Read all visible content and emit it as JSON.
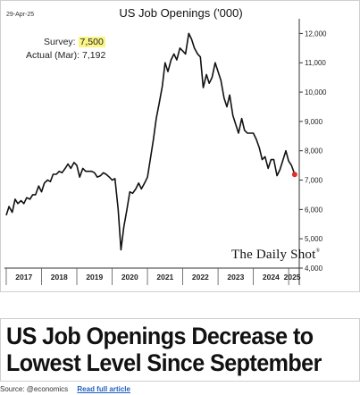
{
  "page": {
    "headline_line1": "US Job Openings Decrease to",
    "headline_line2": "Lowest Level Since September",
    "source_label": "Source: @economics",
    "read_more_label": "Read full article"
  },
  "chart_data": {
    "type": "line",
    "title": "US Job Openings ('000)",
    "date_stamp": "29-Apr-25",
    "annotations": {
      "survey_label": "Survey:",
      "survey_value": "7,500",
      "actual_label": "Actual (Mar):",
      "actual_value": "7,192"
    },
    "watermark": "The Daily Shot",
    "watermark_mark": "®",
    "xlabel": "",
    "ylabel": "",
    "y_axis_side": "right",
    "ylim": [
      4000,
      12500
    ],
    "yticks": [
      4000,
      5000,
      6000,
      7000,
      8000,
      9000,
      10000,
      11000,
      12000
    ],
    "ytick_labels": [
      "4,000",
      "5,000",
      "6,000",
      "7,000",
      "8,000",
      "9,000",
      "10,000",
      "11,000",
      "12,000"
    ],
    "x_range": [
      2016.95,
      2025.3
    ],
    "x_tick_labels": [
      "2017",
      "2018",
      "2019",
      "2020",
      "2021",
      "2022",
      "2023",
      "2024",
      "2025"
    ],
    "x_tick_positions": [
      2017.5,
      2018.5,
      2019.5,
      2020.5,
      2021.5,
      2022.5,
      2023.5,
      2024.5,
      2025.1
    ],
    "grid": false,
    "line_color": "#111111",
    "marker_color": "#e0302c",
    "series": [
      {
        "x": [
          2017.0,
          2017.08,
          2017.17,
          2017.25,
          2017.33,
          2017.42,
          2017.5,
          2017.58,
          2017.67,
          2017.75,
          2017.83,
          2017.92,
          2018.0,
          2018.08,
          2018.17,
          2018.25,
          2018.33,
          2018.42,
          2018.5,
          2018.58,
          2018.67,
          2018.75,
          2018.83,
          2018.92,
          2019.0,
          2019.08,
          2019.17,
          2019.25,
          2019.33,
          2019.42,
          2019.5,
          2019.58,
          2019.67,
          2019.75,
          2019.83,
          2019.92,
          2020.0,
          2020.08,
          2020.17,
          2020.25,
          2020.33,
          2020.42,
          2020.5,
          2020.58,
          2020.67,
          2020.75,
          2020.83,
          2020.92,
          2021.0,
          2021.08,
          2021.17,
          2021.25,
          2021.33,
          2021.42,
          2021.5,
          2021.58,
          2021.67,
          2021.75,
          2021.83,
          2021.92,
          2022.0,
          2022.08,
          2022.17,
          2022.25,
          2022.33,
          2022.42,
          2022.5,
          2022.58,
          2022.67,
          2022.75,
          2022.83,
          2022.92,
          2023.0,
          2023.08,
          2023.17,
          2023.25,
          2023.33,
          2023.42,
          2023.5,
          2023.58,
          2023.67,
          2023.75,
          2023.83,
          2023.92,
          2024.0,
          2024.08,
          2024.17,
          2024.25,
          2024.33,
          2024.42,
          2024.5,
          2024.58,
          2024.67,
          2024.75,
          2024.83,
          2024.92,
          2025.0,
          2025.08,
          2025.17
        ],
        "y": [
          5800,
          6100,
          5900,
          6350,
          6200,
          6300,
          6200,
          6400,
          6350,
          6500,
          6500,
          6800,
          6600,
          6900,
          7000,
          6950,
          7200,
          7200,
          7300,
          7250,
          7400,
          7550,
          7400,
          7600,
          7500,
          7100,
          7400,
          7300,
          7300,
          7300,
          7250,
          7100,
          7150,
          7250,
          7200,
          7100,
          7000,
          7050,
          6000,
          4620,
          5400,
          6000,
          6600,
          6550,
          6700,
          6900,
          6700,
          6900,
          7100,
          7700,
          8400,
          9100,
          9600,
          10200,
          11000,
          10700,
          11100,
          11300,
          11100,
          11500,
          11400,
          11300,
          12000,
          11800,
          11500,
          11300,
          11200,
          10150,
          10600,
          10300,
          10500,
          11000,
          10700,
          10400,
          9800,
          9500,
          9900,
          9200,
          8900,
          8600,
          9100,
          8700,
          8600,
          8600,
          8600,
          8400,
          8100,
          7700,
          7800,
          7400,
          7700,
          7700,
          7150,
          7350,
          7650,
          8000,
          7650,
          7500,
          7200
        ],
        "last_point": {
          "x": 2025.17,
          "y": 7192
        }
      }
    ]
  }
}
